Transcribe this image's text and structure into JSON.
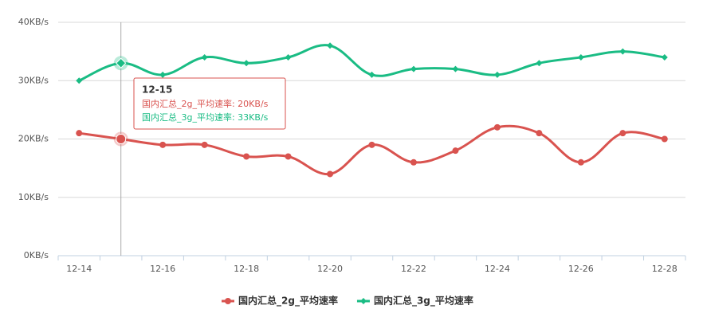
{
  "chart_data": {
    "type": "line",
    "categories": [
      "12-14",
      null,
      "12-16",
      null,
      "12-18",
      null,
      "12-20",
      null,
      "12-22",
      null,
      "12-24",
      null,
      "12-26",
      null,
      "12-28"
    ],
    "series": [
      {
        "name": "国内汇总_2g_平均速率",
        "color": "#d9534f",
        "marker": "circle",
        "values": [
          21,
          20,
          19,
          19,
          17,
          17,
          14,
          19,
          16,
          18,
          22,
          21,
          16,
          21,
          20
        ]
      },
      {
        "name": "国内汇总_3g_平均速率",
        "color": "#1abc84",
        "marker": "diamond",
        "values": [
          30,
          33,
          31,
          34,
          33,
          34,
          36,
          31,
          32,
          32,
          31,
          33,
          34,
          35,
          34
        ]
      }
    ],
    "ylim": [
      0,
      40
    ],
    "yticks": [
      {
        "value": 0,
        "label": "0KB/s"
      },
      {
        "value": 10,
        "label": "10KB/s"
      },
      {
        "value": 20,
        "label": "20KB/s"
      },
      {
        "value": 30,
        "label": "30KB/s"
      },
      {
        "value": 40,
        "label": "40KB/s"
      }
    ],
    "grid": true,
    "legend": "bottom",
    "tooltip": {
      "index": 1,
      "title": "12-15",
      "lines": [
        "国内汇总_2g_平均速率: 20KB/s",
        "国内汇总_3g_平均速率: 33KB/s"
      ]
    }
  }
}
